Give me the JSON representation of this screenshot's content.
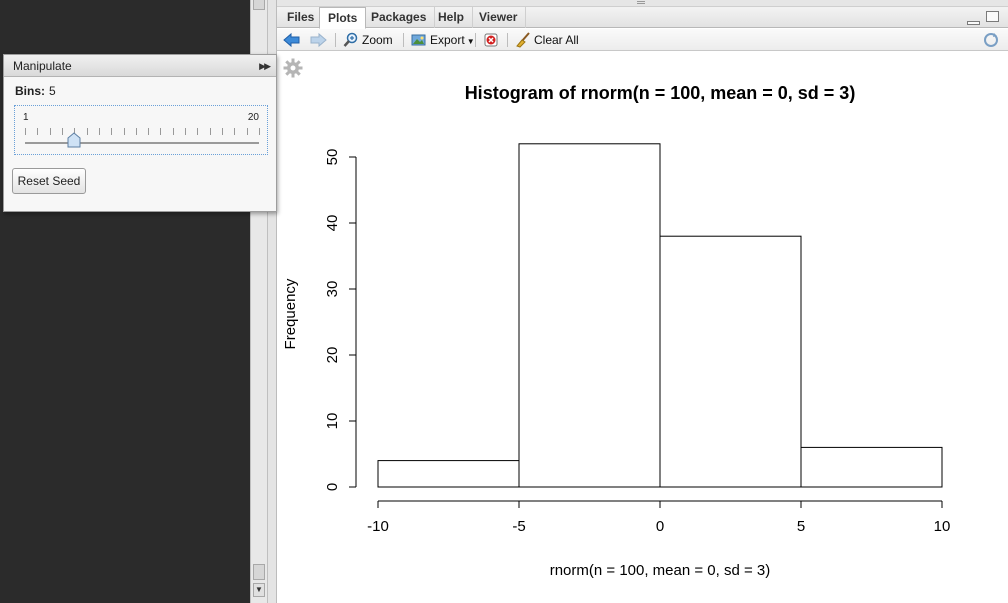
{
  "tabs": [
    {
      "label": "Files",
      "active": false
    },
    {
      "label": "Plots",
      "active": true
    },
    {
      "label": "Packages",
      "active": false
    },
    {
      "label": "Help",
      "active": false
    },
    {
      "label": "Viewer",
      "active": false
    }
  ],
  "toolbar": {
    "back_icon": "arrow-left-icon",
    "forward_icon": "arrow-right-icon",
    "zoom_label": "Zoom",
    "export_label": "Export",
    "remove_icon": "remove-plot-icon",
    "clear_label": "Clear All",
    "refresh_icon": "refresh-icon"
  },
  "manipulate": {
    "title": "Manipulate",
    "bins_label": "Bins:",
    "bins_value": "5",
    "slider": {
      "min": "1",
      "max": "20",
      "value": 5
    },
    "reset_label": "Reset Seed"
  },
  "chart_data": {
    "type": "bar",
    "title": "Histogram of rnorm(n = 100, mean = 0, sd = 3)",
    "xlabel": "rnorm(n = 100, mean = 0, sd = 3)",
    "ylabel": "Frequency",
    "bins": [
      {
        "x0": -10,
        "x1": -5,
        "count": 4
      },
      {
        "x0": -5,
        "x1": 0,
        "count": 52
      },
      {
        "x0": 0,
        "x1": 5,
        "count": 38
      },
      {
        "x0": 5,
        "x1": 10,
        "count": 6
      }
    ],
    "xlim": [
      -10,
      10
    ],
    "ylim": [
      0,
      50
    ],
    "xticks": [
      -10,
      -5,
      0,
      5,
      10
    ],
    "yticks": [
      0,
      10,
      20,
      30,
      40,
      50
    ],
    "xtick_labels": [
      "-10",
      "-5",
      "0",
      "5",
      "10"
    ],
    "ytick_labels": [
      "0",
      "10",
      "20",
      "30",
      "40",
      "50"
    ],
    "grid": false
  }
}
